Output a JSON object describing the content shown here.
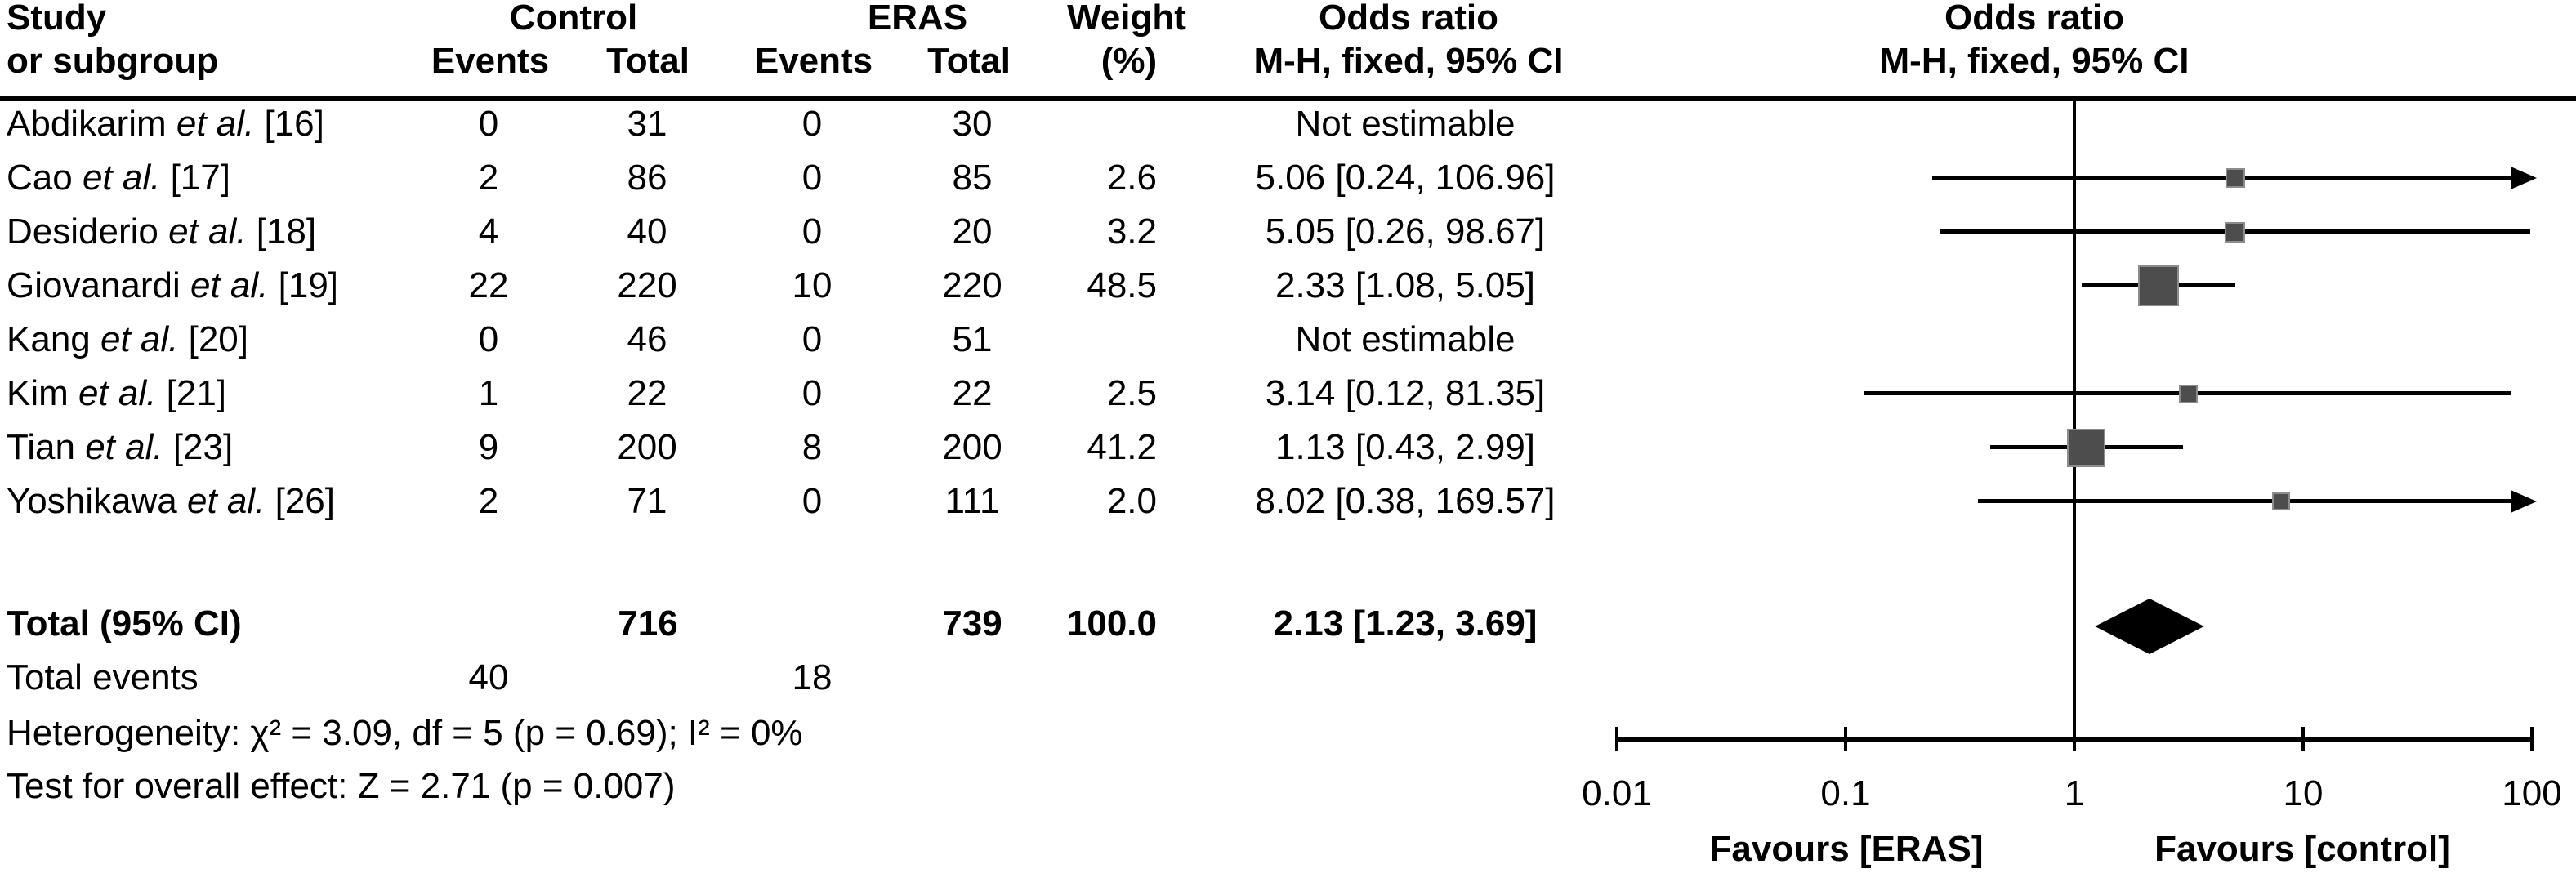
{
  "header": {
    "study_line1": "Study",
    "study_line2": "or subgroup",
    "group_control": "Control",
    "group_eras": "ERAS",
    "control_events": "Events",
    "control_total": "Total",
    "eras_events": "Events",
    "eras_total": "Total",
    "weight_line1": "Weight",
    "weight_line2": "(%)",
    "or_text_line1": "Odds ratio",
    "or_text_line2": "M-H, fixed, 95% CI",
    "or_plot_line1": "Odds ratio",
    "or_plot_line2": "M-H, fixed, 95% CI"
  },
  "chart_data": {
    "type": "forest",
    "effect_measure": "Odds ratio, M-H, fixed, 95% CI",
    "x_axis": {
      "scale": "log",
      "min": 0.01,
      "max": 100,
      "ticks": [
        0.01,
        0.1,
        1,
        10,
        100
      ],
      "tick_labels": [
        "0.01",
        "0.1",
        "1",
        "10",
        "100"
      ],
      "left_label": "Favours [ERAS]",
      "right_label": "Favours [control]"
    },
    "studies": [
      {
        "name": "Abdikarim",
        "etal": " et al. ",
        "ref": "[16]",
        "control_events": "0",
        "control_total": "31",
        "eras_events": "0",
        "eras_total": "30",
        "weight": "",
        "or_text": "Not estimable",
        "estimable": false,
        "or": null,
        "ci_low": null,
        "ci_high": null,
        "marker_size": 0
      },
      {
        "name": "Cao",
        "etal": " et al. ",
        "ref": "[17]",
        "control_events": "2",
        "control_total": "86",
        "eras_events": "0",
        "eras_total": "85",
        "weight": "2.6",
        "or_text": "5.06 [0.24, 106.96]",
        "estimable": true,
        "or": 5.06,
        "ci_low": 0.24,
        "ci_high": 106.96,
        "marker_size": 20
      },
      {
        "name": "Desiderio",
        "etal": " et al. ",
        "ref": "[18]",
        "control_events": "4",
        "control_total": "40",
        "eras_events": "0",
        "eras_total": "20",
        "weight": "3.2",
        "or_text": "5.05 [0.26, 98.67]",
        "estimable": true,
        "or": 5.05,
        "ci_low": 0.26,
        "ci_high": 98.67,
        "marker_size": 21
      },
      {
        "name": "Giovanardi",
        "etal": " et al. ",
        "ref": "[19]",
        "control_events": "22",
        "control_total": "220",
        "eras_events": "10",
        "eras_total": "220",
        "weight": "48.5",
        "or_text": "2.33 [1.08, 5.05]",
        "estimable": true,
        "or": 2.33,
        "ci_low": 1.08,
        "ci_high": 5.05,
        "marker_size": 46
      },
      {
        "name": "Kang",
        "etal": " et al. ",
        "ref": "[20]",
        "control_events": "0",
        "control_total": "46",
        "eras_events": "0",
        "eras_total": "51",
        "weight": "",
        "or_text": "Not estimable",
        "estimable": false,
        "or": null,
        "ci_low": null,
        "ci_high": null,
        "marker_size": 0
      },
      {
        "name": "Kim",
        "etal": " et al. ",
        "ref": "[21]",
        "control_events": "1",
        "control_total": "22",
        "eras_events": "0",
        "eras_total": "22",
        "weight": "2.5",
        "or_text": "3.14 [0.12, 81.35]",
        "estimable": true,
        "or": 3.14,
        "ci_low": 0.12,
        "ci_high": 81.35,
        "marker_size": 19
      },
      {
        "name": "Tian",
        "etal": " et al. ",
        "ref": "[23]",
        "control_events": "9",
        "control_total": "200",
        "eras_events": "8",
        "eras_total": "200",
        "weight": "41.2",
        "or_text": "1.13 [0.43, 2.99]",
        "estimable": true,
        "or": 1.13,
        "ci_low": 0.43,
        "ci_high": 2.99,
        "marker_size": 43
      },
      {
        "name": "Yoshikawa",
        "etal": " et al. ",
        "ref": "[26]",
        "control_events": "2",
        "control_total": "71",
        "eras_events": "0",
        "eras_total": "111",
        "weight": "2.0",
        "or_text": "8.02 [0.38, 169.57]",
        "estimable": true,
        "or": 8.02,
        "ci_low": 0.38,
        "ci_high": 169.57,
        "marker_size": 18
      }
    ],
    "total": {
      "label": "Total (95% CI)",
      "control_total": "716",
      "eras_total": "739",
      "weight": "100.0",
      "or_text": "2.13 [1.23, 3.69]",
      "or": 2.13,
      "ci_low": 1.23,
      "ci_high": 3.69
    },
    "total_events": {
      "label": "Total events",
      "control": "40",
      "eras": "18"
    },
    "heterogeneity": "Heterogeneity: χ² = 3.09, df = 5 (p = 0.69); I² = 0%",
    "overall_effect": "Test for overall effect: Z = 2.71 (p = 0.007)"
  },
  "colors": {
    "text": "#000000",
    "line": "#000000",
    "marker_fill": "#4d4d4d",
    "marker_edge": "#8c8c8c",
    "diamond": "#000000"
  }
}
